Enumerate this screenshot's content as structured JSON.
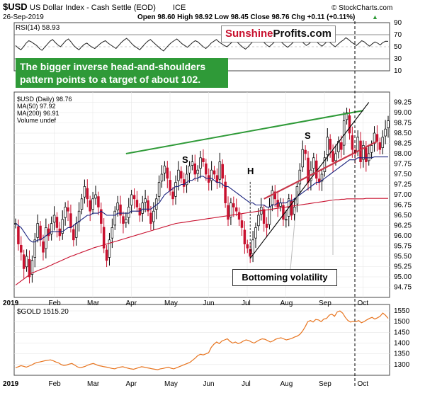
{
  "header": {
    "symbol": "$USD",
    "name": "US Dollar Index - Cash Settle (EOD)",
    "exchange": "ICE",
    "watermark": "© StockCharts.com",
    "date": "26-Sep-2019",
    "ohlc": "Open 98.60  High 98.92  Low 98.45  Close 98.76  Chg +0.11 (+0.11%)",
    "ohlc_marker": "▲"
  },
  "logo": {
    "part1": "Sunshine",
    "part2": "Profits.com"
  },
  "annotation": "The bigger inverse head-and-shoulders pattern points to a target of about 102.",
  "callout": "Bottoming volatility",
  "pattern_labels": [
    "S",
    "H",
    "S"
  ],
  "colors": {
    "candle_up": "#000000",
    "candle_down": "#c8102e",
    "ma50": "#1a237e",
    "ma200": "#c8102e",
    "gold_line": "#e8741e",
    "neckline": "#2f9a38",
    "support": "#c8374a",
    "annotation_bg": "#2f9a38"
  },
  "chart_data": [
    {
      "type": "line",
      "panel": "RSI",
      "legend": "RSI(14) 58.93",
      "ylim": [
        10,
        90
      ],
      "yticks": [
        10,
        30,
        50,
        70,
        90
      ],
      "reference_lines": [
        30,
        70
      ],
      "values": [
        52,
        48,
        45,
        50,
        56,
        60,
        58,
        55,
        52,
        47,
        44,
        49,
        54,
        59,
        62,
        57,
        53,
        50,
        55,
        60,
        63,
        58,
        52,
        48,
        45,
        50,
        54,
        56,
        52,
        49,
        47,
        51,
        55,
        58,
        60,
        56,
        53,
        50,
        47,
        52,
        57,
        61,
        64,
        60,
        55,
        51,
        48,
        45,
        50,
        55,
        59,
        62,
        58,
        54,
        50,
        46,
        43,
        48,
        53,
        57,
        60,
        63,
        59,
        55,
        52,
        49,
        53,
        57,
        60,
        58,
        54,
        50,
        47,
        51,
        56,
        59,
        62,
        58,
        55,
        52,
        50,
        54,
        58,
        61,
        57,
        53,
        49,
        46,
        50,
        55,
        59,
        63,
        66,
        62,
        57,
        53,
        50,
        54,
        58,
        62,
        60,
        56,
        52,
        49,
        53,
        57,
        61,
        64,
        60,
        56,
        52,
        55,
        59,
        62,
        58,
        54,
        51,
        55,
        59,
        57,
        53,
        50,
        54,
        58,
        61,
        65,
        62,
        58,
        55,
        52,
        56,
        60,
        58,
        54,
        51,
        55,
        58,
        56,
        53,
        57,
        59,
        58.93
      ]
    },
    {
      "type": "line",
      "panel": "USD",
      "legend": [
        "$USD (Daily) 98.76",
        "MA(50) 97.92",
        "MA(200) 96.91",
        "Volume undef"
      ],
      "x_ticks": [
        "2019",
        "Feb",
        "Mar",
        "Apr",
        "May",
        "Jun",
        "Jul",
        "Aug",
        "Sep",
        "Oct"
      ],
      "ylim": [
        94.5,
        99.5
      ],
      "yticks": [
        94.75,
        95.0,
        95.25,
        95.5,
        95.75,
        96.0,
        96.25,
        96.5,
        96.75,
        97.0,
        97.25,
        97.5,
        97.75,
        98.0,
        98.25,
        98.5,
        98.75,
        99.0,
        99.25
      ],
      "close": [
        96.3,
        95.8,
        95.6,
        95.2,
        95.5,
        95.0,
        95.4,
        95.9,
        96.3,
        95.9,
        95.6,
        96.2,
        96.0,
        96.3,
        96.5,
        96.2,
        96.0,
        96.4,
        96.7,
        96.6,
        96.2,
        95.9,
        96.3,
        96.6,
        96.9,
        97.2,
        96.9,
        96.6,
        96.9,
        97.0,
        96.7,
        96.3,
        95.7,
        95.4,
        95.9,
        96.2,
        96.6,
        96.8,
        96.5,
        96.3,
        96.4,
        96.7,
        97.0,
        96.9,
        96.7,
        96.5,
        96.8,
        96.9,
        96.6,
        96.3,
        96.6,
        96.9,
        97.3,
        97.5,
        97.7,
        97.4,
        97.1,
        96.9,
        97.3,
        97.6,
        97.4,
        97.2,
        97.5,
        97.7,
        97.8,
        97.5,
        97.6,
        97.9,
        97.8,
        97.5,
        97.3,
        97.6,
        97.5,
        97.3,
        97.8,
        97.4,
        96.8,
        96.4,
        96.8,
        96.7,
        96.6,
        96.4,
        96.2,
        95.8,
        95.7,
        95.5,
        95.9,
        96.2,
        96.5,
        96.7,
        96.3,
        96.2,
        96.7,
        97.1,
        96.9,
        96.7,
        96.8,
        96.4,
        96.4,
        96.9,
        96.5,
        96.7,
        97.2,
        97.6,
        98.1,
        98.0,
        97.3,
        97.6,
        97.9,
        97.4,
        97.3,
        97.5,
        97.9,
        98.4,
        98.1,
        97.8,
        98.0,
        98.3,
        98.1,
        98.8,
        99.0,
        98.5,
        98.1,
        98.0,
        98.4,
        97.8,
        98.2,
        97.8,
        98.0,
        98.2,
        98.5,
        98.3,
        98.1,
        98.4,
        98.6,
        98.8
      ],
      "ma50": [
        96.3,
        96.25,
        96.2,
        96.1,
        96.0,
        95.9,
        95.85,
        95.85,
        95.9,
        95.9,
        95.95,
        96.0,
        96.05,
        96.1,
        96.1,
        96.1,
        96.1,
        96.1,
        96.15,
        96.2,
        96.2,
        96.25,
        96.3,
        96.35,
        96.4,
        96.45,
        96.5,
        96.5,
        96.55,
        96.55,
        96.55,
        96.6,
        96.55,
        96.5,
        96.5,
        96.5,
        96.5,
        96.55,
        96.55,
        96.55,
        96.55,
        96.55,
        96.6,
        96.6,
        96.6,
        96.6,
        96.65,
        96.65,
        96.65,
        96.65,
        96.7,
        96.75,
        96.8,
        96.9,
        97.0,
        97.05,
        97.1,
        97.15,
        97.2,
        97.2,
        97.25,
        97.25,
        97.3,
        97.35,
        97.35,
        97.4,
        97.4,
        97.45,
        97.45,
        97.4,
        97.4,
        97.4,
        97.35,
        97.3,
        97.3,
        97.25,
        97.2,
        97.2,
        97.15,
        97.1,
        97.05,
        97.0,
        96.95,
        96.9,
        96.85,
        96.8,
        96.8,
        96.75,
        96.75,
        96.75,
        96.75,
        96.7,
        96.7,
        96.75,
        96.75,
        96.8,
        96.8,
        96.8,
        96.8,
        96.85,
        96.85,
        96.9,
        96.95,
        97.0,
        97.05,
        97.1,
        97.15,
        97.2,
        97.25,
        97.3,
        97.3,
        97.35,
        97.4,
        97.45,
        97.5,
        97.55,
        97.6,
        97.65,
        97.7,
        97.75,
        97.8,
        97.85,
        97.85,
        97.85,
        97.9,
        97.9,
        97.9,
        97.9,
        97.9,
        97.9,
        97.92,
        97.92,
        97.92,
        97.92,
        97.92,
        97.92
      ],
      "ma200": [
        94.8,
        94.85,
        94.9,
        94.95,
        95.0,
        95.05,
        95.1,
        95.12,
        95.15,
        95.18,
        95.2,
        95.23,
        95.26,
        95.29,
        95.32,
        95.35,
        95.38,
        95.41,
        95.44,
        95.47,
        95.5,
        95.52,
        95.55,
        95.57,
        95.6,
        95.62,
        95.65,
        95.67,
        95.7,
        95.72,
        95.74,
        95.76,
        95.78,
        95.8,
        95.82,
        95.84,
        95.86,
        95.88,
        95.9,
        95.92,
        95.94,
        95.96,
        95.98,
        96.0,
        96.02,
        96.04,
        96.06,
        96.08,
        96.1,
        96.12,
        96.14,
        96.16,
        96.18,
        96.2,
        96.22,
        96.24,
        96.26,
        96.28,
        96.3,
        96.31,
        96.32,
        96.33,
        96.34,
        96.35,
        96.36,
        96.37,
        96.38,
        96.39,
        96.4,
        96.41,
        96.42,
        96.43,
        96.44,
        96.45,
        96.46,
        96.47,
        96.48,
        96.49,
        96.5,
        96.51,
        96.52,
        96.53,
        96.54,
        96.55,
        96.56,
        96.57,
        96.58,
        96.59,
        96.6,
        96.61,
        96.62,
        96.63,
        96.64,
        96.65,
        96.66,
        96.67,
        96.68,
        96.69,
        96.7,
        96.71,
        96.72,
        96.73,
        96.74,
        96.75,
        96.76,
        96.77,
        96.78,
        96.79,
        96.8,
        96.81,
        96.82,
        96.83,
        96.84,
        96.85,
        96.86,
        96.87,
        96.88,
        96.88,
        96.89,
        96.89,
        96.9,
        96.9,
        96.9,
        96.9,
        96.9,
        96.9,
        96.9,
        96.91,
        96.91,
        96.91,
        96.91,
        96.91,
        96.91,
        96.91,
        96.91,
        96.91
      ]
    },
    {
      "type": "line",
      "panel": "GOLD",
      "legend": "$GOLD 1515.20",
      "ylim": [
        1250,
        1580
      ],
      "yticks": [
        1300,
        1350,
        1400,
        1450,
        1500,
        1550
      ],
      "values": [
        1285,
        1290,
        1295,
        1292,
        1288,
        1293,
        1298,
        1305,
        1310,
        1312,
        1315,
        1318,
        1320,
        1322,
        1318,
        1312,
        1308,
        1300,
        1296,
        1298,
        1302,
        1305,
        1298,
        1290,
        1285,
        1288,
        1292,
        1298,
        1302,
        1305,
        1300,
        1295,
        1293,
        1290,
        1288,
        1285,
        1282,
        1280,
        1285,
        1288,
        1290,
        1286,
        1283,
        1280,
        1278,
        1282,
        1286,
        1290,
        1288,
        1285,
        1283,
        1280,
        1278,
        1276,
        1280,
        1282,
        1285,
        1288,
        1283,
        1280,
        1285,
        1290,
        1295,
        1300,
        1305,
        1310,
        1320,
        1330,
        1342,
        1348,
        1345,
        1350,
        1355,
        1380,
        1395,
        1405,
        1398,
        1410,
        1415,
        1420,
        1408,
        1400,
        1405,
        1398,
        1402,
        1410,
        1415,
        1412,
        1405,
        1400,
        1408,
        1415,
        1420,
        1418,
        1412,
        1405,
        1410,
        1418,
        1422,
        1425,
        1420,
        1415,
        1418,
        1422,
        1428,
        1432,
        1440,
        1455,
        1475,
        1500,
        1505,
        1498,
        1510,
        1508,
        1500,
        1512,
        1515,
        1530,
        1535,
        1525,
        1545,
        1550,
        1540,
        1520,
        1505,
        1498,
        1502,
        1500,
        1505,
        1495,
        1500,
        1508,
        1515,
        1520,
        1512,
        1518,
        1525,
        1540,
        1530,
        1515.2
      ]
    }
  ]
}
